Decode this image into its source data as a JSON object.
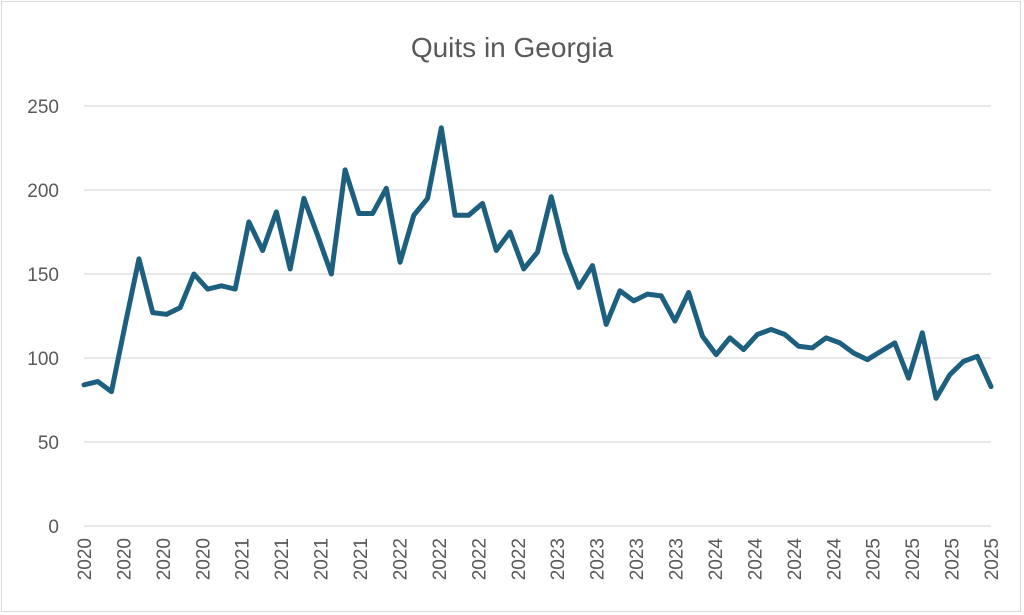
{
  "chart_data": {
    "type": "line",
    "title": "Quits in Georgia",
    "xlabel": "",
    "ylabel": "",
    "ylim": [
      0,
      250
    ],
    "yticks": [
      0,
      50,
      100,
      150,
      200,
      250
    ],
    "grid": true,
    "legend": "none",
    "color": "#1d5f7f",
    "x_tick_labels": [
      "2020",
      "2020",
      "2020",
      "2020",
      "2021",
      "2021",
      "2021",
      "2021",
      "2022",
      "2022",
      "2022",
      "2022",
      "2023",
      "2023",
      "2023",
      "2023",
      "2024",
      "2024",
      "2024",
      "2024",
      "2025",
      "2025",
      "2025",
      "2025"
    ],
    "series": [
      {
        "values": [
          84,
          86,
          80,
          120,
          159,
          127,
          126,
          130,
          150,
          141,
          143,
          141,
          181,
          164,
          187,
          153,
          195,
          173,
          150,
          212,
          186,
          186,
          201,
          157,
          185,
          195,
          237,
          185,
          185,
          192,
          164,
          175,
          153,
          163,
          196,
          163,
          142,
          155,
          120,
          140,
          134,
          138,
          137,
          122,
          139,
          113,
          102,
          112,
          105,
          114,
          117,
          114,
          107,
          106,
          112,
          109,
          103,
          99,
          104,
          109,
          88,
          115,
          76,
          90,
          98,
          101,
          83
        ]
      }
    ]
  }
}
